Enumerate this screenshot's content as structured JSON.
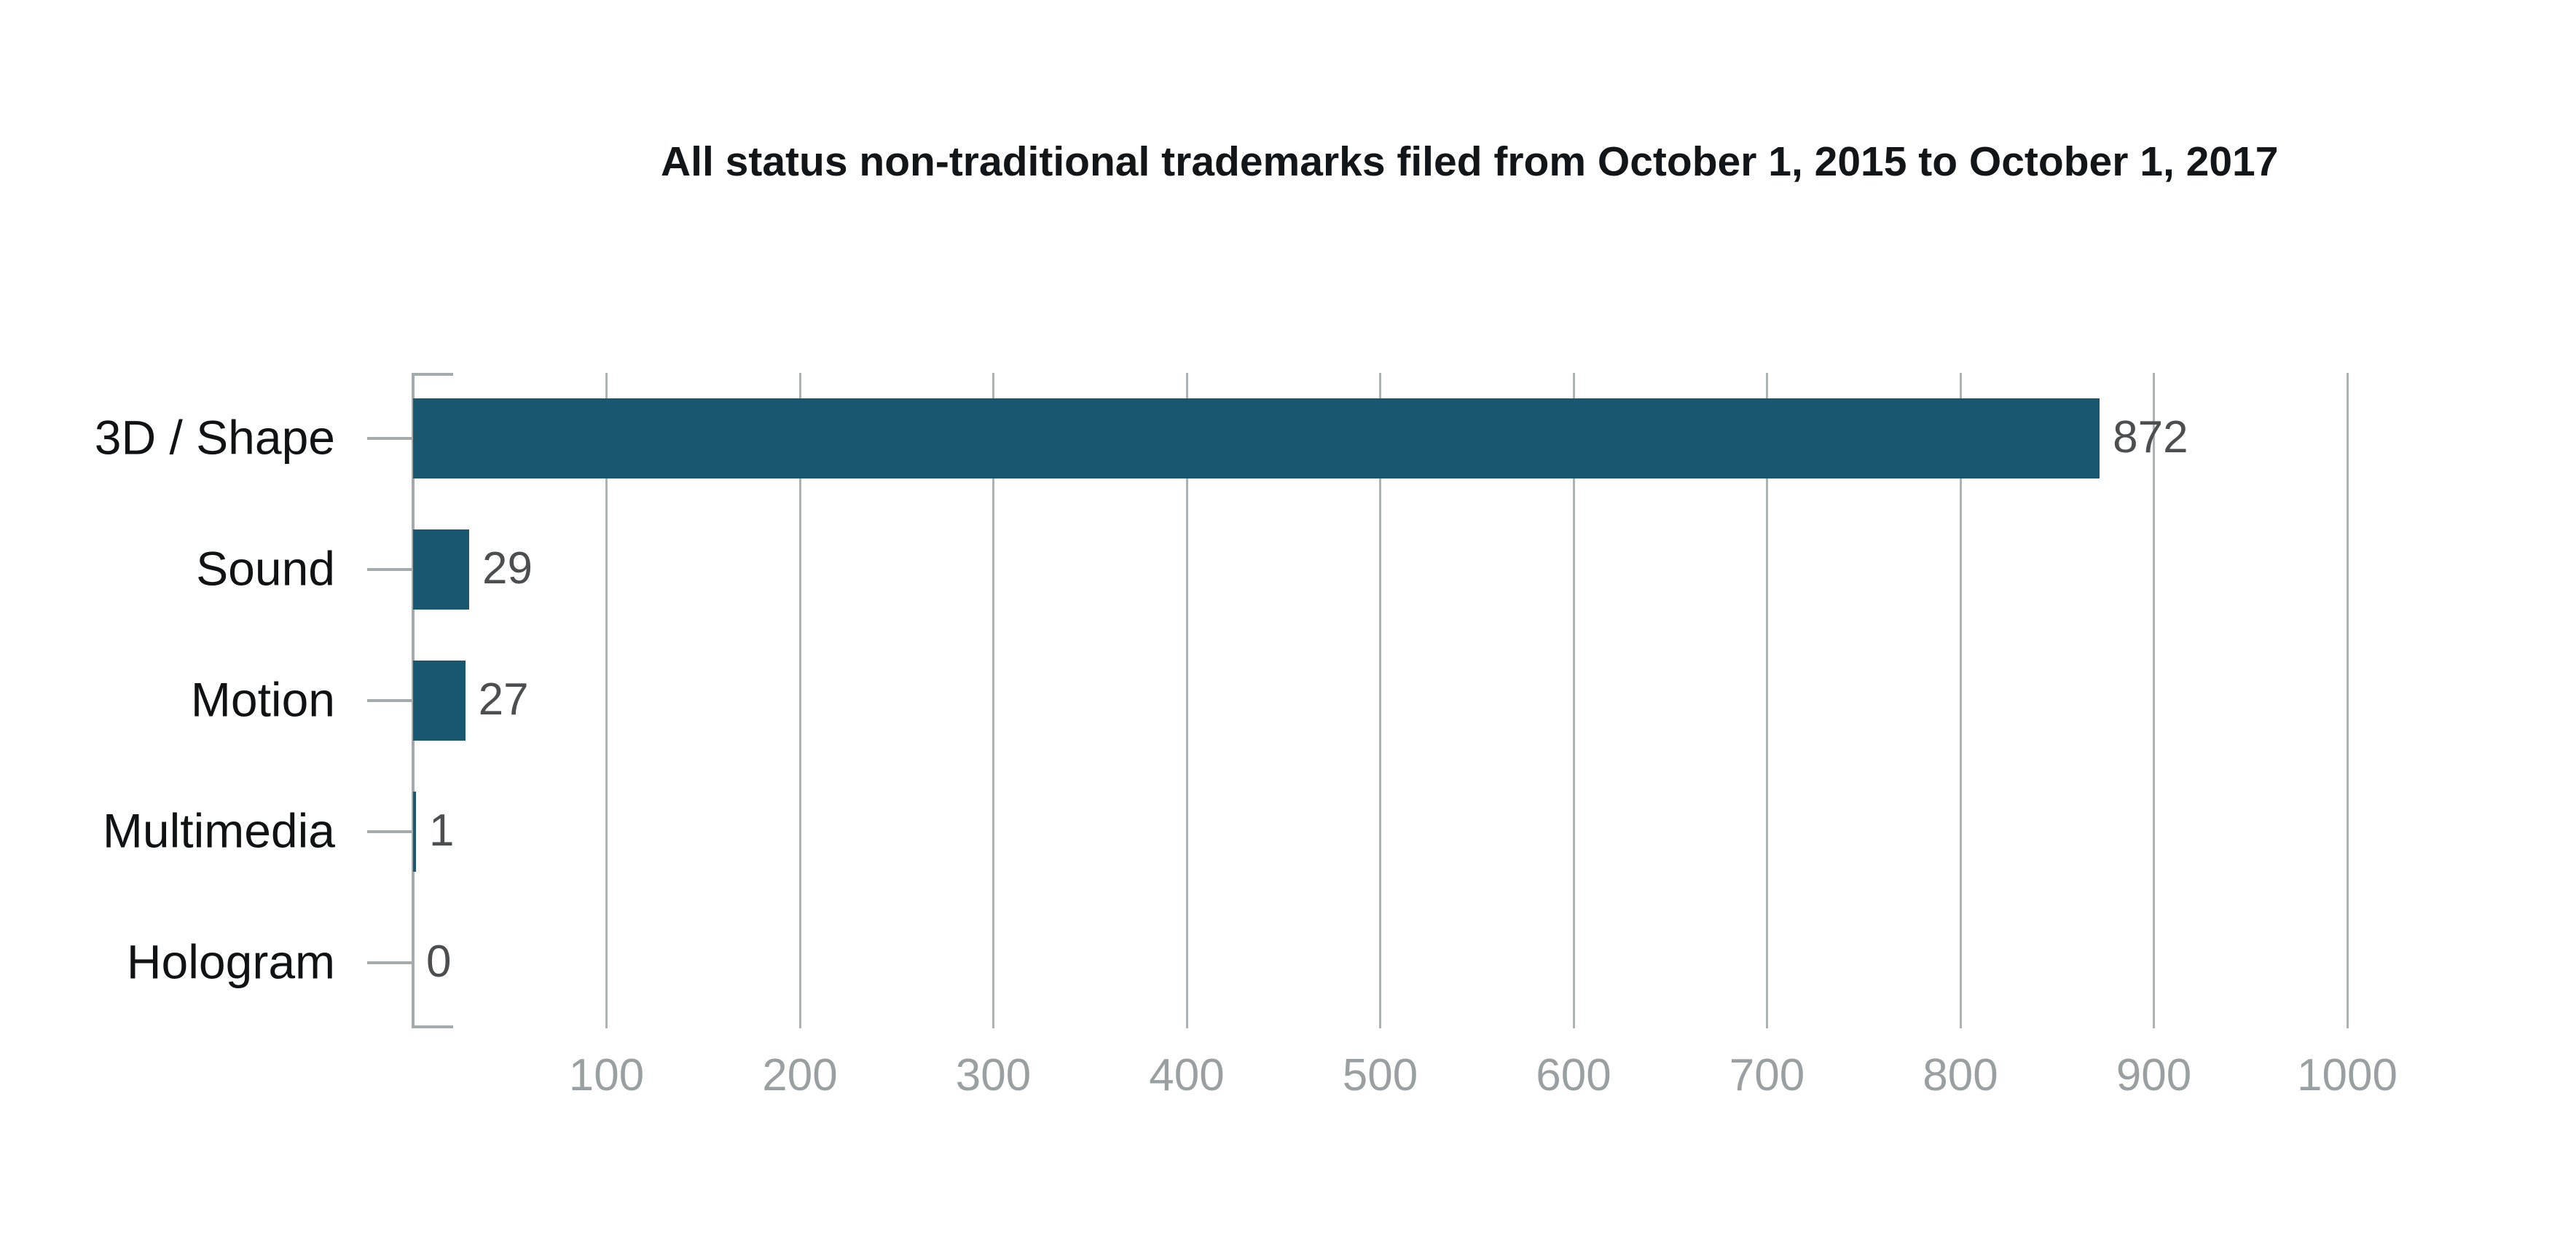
{
  "title": "All status non-traditional trademarks filed from October 1, 2015 to October 1, 2017",
  "colors": {
    "background": "#ffffff",
    "bar": "#18576f",
    "axis": "#a5aaad",
    "grid": "#adb2b4",
    "title_text": "#131619",
    "category_label": "#101214",
    "value_label": "#4c4e50",
    "tick_label": "#9aa0a2"
  },
  "chart_data": {
    "type": "bar",
    "orientation": "horizontal",
    "title": "All status non-traditional trademarks filed from October 1, 2015 to October 1, 2017",
    "categories": [
      "3D / Shape",
      "Sound",
      "Motion",
      "Multimedia",
      "Hologram"
    ],
    "values": [
      872,
      29,
      27,
      1,
      0
    ],
    "xlabel": "",
    "ylabel": "",
    "xlim": [
      0,
      1000
    ],
    "x_ticks": [
      100,
      200,
      300,
      400,
      500,
      600,
      700,
      800,
      900,
      1000
    ],
    "grid": "vertical-only",
    "legend": "none",
    "value_labels_shown": true
  }
}
